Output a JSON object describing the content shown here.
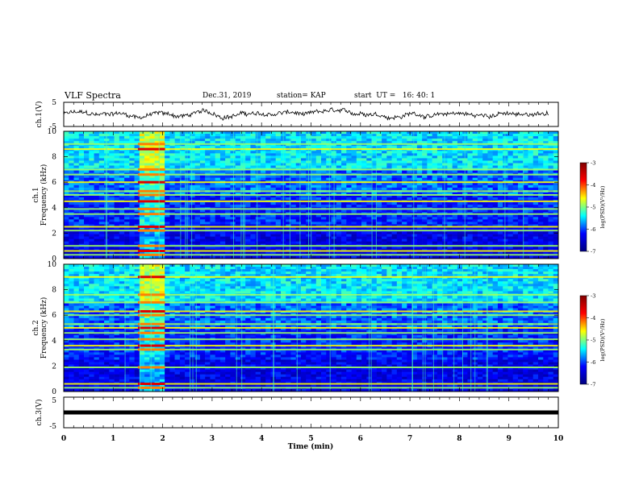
{
  "header": {
    "title": "VLF Spectra",
    "date": "Dec.31, 2019",
    "station": "station= KAP",
    "start": "start  UT =   16: 40: 1"
  },
  "colors": {
    "cmap": [
      "#000080",
      "#0000ff",
      "#00ffff",
      "#ffff00",
      "#ff0000",
      "#800000"
    ],
    "trace": "#000000"
  },
  "chart_data": [
    {
      "type": "line",
      "ylabel": "ch.1(V)",
      "ylim": [
        -5,
        5
      ],
      "yticks": [
        "5",
        "-5"
      ],
      "xlim": [
        0,
        10
      ],
      "note": "noisy waveform trace around 0 V"
    },
    {
      "type": "heatmap",
      "ylabel": "ch.1\nFrequency  (kHz)",
      "ylim": [
        0,
        10
      ],
      "yticks": [
        "0",
        "2",
        "4",
        "6",
        "8",
        "10"
      ],
      "xlim": [
        0,
        10
      ],
      "colorbar": {
        "label": "log(PSD)(V²/Hz)",
        "range": [
          -7,
          -3
        ],
        "ticks": [
          "-3",
          "-4",
          "-5",
          "-6",
          "-7"
        ]
      },
      "bands_khz": [
        0.3,
        0.6,
        1.0,
        2.2,
        2.5,
        3.5,
        3.9,
        4.5,
        5.0,
        5.3,
        6.0,
        6.6,
        7.0,
        8.6,
        9.0
      ],
      "burst_min": [
        1.5,
        2.05
      ]
    },
    {
      "type": "heatmap",
      "ylabel": "ch.2\nFrequency  (kHz)",
      "ylim": [
        0,
        10
      ],
      "yticks": [
        "0",
        "2",
        "4",
        "6",
        "8",
        "10"
      ],
      "xlim": [
        0,
        10
      ],
      "colorbar": {
        "label": "log(PSD)(V²/Hz)",
        "range": [
          -7,
          -3
        ],
        "ticks": [
          "-3",
          "-4",
          "-5",
          "-6",
          "-7"
        ]
      },
      "bands_khz": [
        0.3,
        0.6,
        1.9,
        3.3,
        3.6,
        4.1,
        4.6,
        5.0,
        5.3,
        6.0,
        6.3,
        7.0,
        7.6,
        9.0
      ],
      "burst_min": [
        1.5,
        2.05
      ]
    },
    {
      "type": "line",
      "ylabel": "ch.3(V)",
      "ylim": [
        -5,
        5
      ],
      "yticks": [
        "5",
        "-5"
      ],
      "xlim": [
        0,
        10
      ],
      "flat_value": 0,
      "xlabel": "Time  (min)",
      "xticks": [
        "0",
        "1",
        "2",
        "3",
        "4",
        "5",
        "6",
        "7",
        "8",
        "9",
        "10"
      ]
    }
  ]
}
